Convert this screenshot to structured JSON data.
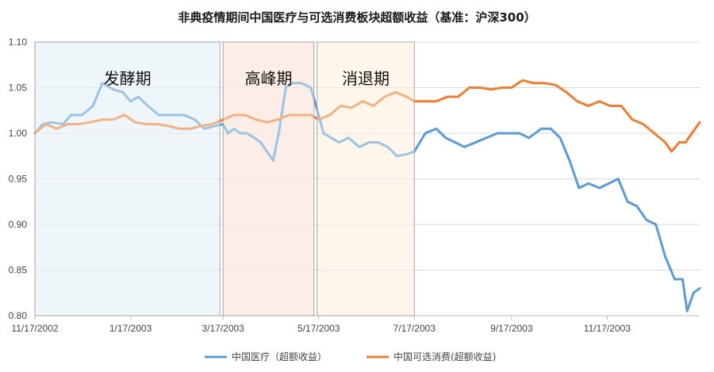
{
  "chart_data": {
    "type": "line",
    "title": "非典疫情期间中国医疗与可选消费板块超额收益（基准：沪深300）",
    "xlabel": "",
    "ylabel": "",
    "x_ticks": [
      "11/17/2002",
      "1/17/2003",
      "3/17/2003",
      "5/17/2003",
      "7/17/2003",
      "9/17/2003",
      "11/17/2003"
    ],
    "x_range": [
      "2002-11-17",
      "2004-01-15"
    ],
    "ylim": [
      0.8,
      1.1
    ],
    "y_ticks": [
      "0.80",
      "0.85",
      "0.90",
      "0.95",
      "1.00",
      "1.05",
      "1.10"
    ],
    "grid": "horizontal",
    "legend_position": "bottom",
    "phases": [
      {
        "label": "发酵期",
        "start": "2002-11-17",
        "end": "2003-03-15",
        "color": "#e3f1f5"
      },
      {
        "label": "高峰期",
        "start": "2003-03-17",
        "end": "2003-05-14",
        "color": "#fbe3d6"
      },
      {
        "label": "消退期",
        "start": "2003-05-16",
        "end": "2003-07-17",
        "color": "#fdf0de"
      }
    ],
    "series": [
      {
        "name": "中国医疗（超额收益）",
        "color": "#5b9bd5",
        "points": [
          [
            "2002-11-17",
            1.0
          ],
          [
            "2002-11-22",
            1.01
          ],
          [
            "2002-11-28",
            1.012
          ],
          [
            "2002-12-05",
            1.01
          ],
          [
            "2002-12-10",
            1.02
          ],
          [
            "2002-12-17",
            1.02
          ],
          [
            "2002-12-24",
            1.03
          ],
          [
            "2002-12-30",
            1.055
          ],
          [
            "2003-01-06",
            1.048
          ],
          [
            "2003-01-12",
            1.045
          ],
          [
            "2003-01-17",
            1.035
          ],
          [
            "2003-01-22",
            1.04
          ],
          [
            "2003-01-28",
            1.03
          ],
          [
            "2003-02-04",
            1.02
          ],
          [
            "2003-02-12",
            1.02
          ],
          [
            "2003-02-20",
            1.02
          ],
          [
            "2003-02-27",
            1.015
          ],
          [
            "2003-03-05",
            1.005
          ],
          [
            "2003-03-12",
            1.008
          ],
          [
            "2003-03-17",
            1.01
          ],
          [
            "2003-03-20",
            1.0
          ],
          [
            "2003-03-24",
            1.005
          ],
          [
            "2003-03-28",
            1.0
          ],
          [
            "2003-04-01",
            1.0
          ],
          [
            "2003-04-06",
            0.995
          ],
          [
            "2003-04-10",
            0.99
          ],
          [
            "2003-04-14",
            0.98
          ],
          [
            "2003-04-18",
            0.97
          ],
          [
            "2003-04-22",
            1.005
          ],
          [
            "2003-04-26",
            1.05
          ],
          [
            "2003-04-30",
            1.055
          ],
          [
            "2003-05-06",
            1.055
          ],
          [
            "2003-05-12",
            1.05
          ],
          [
            "2003-05-17",
            1.02
          ],
          [
            "2003-05-20",
            1.0
          ],
          [
            "2003-05-25",
            0.995
          ],
          [
            "2003-05-30",
            0.99
          ],
          [
            "2003-06-05",
            0.995
          ],
          [
            "2003-06-12",
            0.985
          ],
          [
            "2003-06-18",
            0.99
          ],
          [
            "2003-06-24",
            0.99
          ],
          [
            "2003-06-30",
            0.985
          ],
          [
            "2003-07-06",
            0.975
          ],
          [
            "2003-07-12",
            0.977
          ],
          [
            "2003-07-17",
            0.98
          ],
          [
            "2003-07-24",
            1.0
          ],
          [
            "2003-07-31",
            1.005
          ],
          [
            "2003-08-06",
            0.995
          ],
          [
            "2003-08-12",
            0.99
          ],
          [
            "2003-08-18",
            0.985
          ],
          [
            "2003-08-25",
            0.99
          ],
          [
            "2003-09-01",
            0.995
          ],
          [
            "2003-09-08",
            1.0
          ],
          [
            "2003-09-15",
            1.0
          ],
          [
            "2003-09-22",
            1.0
          ],
          [
            "2003-09-28",
            0.995
          ],
          [
            "2003-10-06",
            1.005
          ],
          [
            "2003-10-12",
            1.005
          ],
          [
            "2003-10-18",
            0.995
          ],
          [
            "2003-10-24",
            0.97
          ],
          [
            "2003-10-30",
            0.94
          ],
          [
            "2003-11-05",
            0.945
          ],
          [
            "2003-11-12",
            0.94
          ],
          [
            "2003-11-18",
            0.945
          ],
          [
            "2003-11-24",
            0.95
          ],
          [
            "2003-11-30",
            0.925
          ],
          [
            "2003-12-06",
            0.92
          ],
          [
            "2003-12-12",
            0.905
          ],
          [
            "2003-12-18",
            0.9
          ],
          [
            "2003-12-24",
            0.865
          ],
          [
            "2003-12-30",
            0.84
          ],
          [
            "2004-01-04",
            0.84
          ],
          [
            "2004-01-07",
            0.805
          ],
          [
            "2004-01-11",
            0.825
          ],
          [
            "2004-01-15",
            0.83
          ]
        ]
      },
      {
        "name": "中国可选消费(超额收益)",
        "color": "#ed7d31",
        "points": [
          [
            "2002-11-17",
            1.0
          ],
          [
            "2002-11-24",
            1.01
          ],
          [
            "2002-12-01",
            1.005
          ],
          [
            "2002-12-08",
            1.01
          ],
          [
            "2002-12-15",
            1.01
          ],
          [
            "2002-12-22",
            1.012
          ],
          [
            "2002-12-30",
            1.015
          ],
          [
            "2003-01-06",
            1.015
          ],
          [
            "2003-01-13",
            1.02
          ],
          [
            "2003-01-20",
            1.012
          ],
          [
            "2003-01-27",
            1.01
          ],
          [
            "2003-02-03",
            1.01
          ],
          [
            "2003-02-10",
            1.008
          ],
          [
            "2003-02-17",
            1.005
          ],
          [
            "2003-02-24",
            1.005
          ],
          [
            "2003-03-03",
            1.008
          ],
          [
            "2003-03-10",
            1.01
          ],
          [
            "2003-03-17",
            1.015
          ],
          [
            "2003-03-24",
            1.02
          ],
          [
            "2003-03-31",
            1.02
          ],
          [
            "2003-04-07",
            1.015
          ],
          [
            "2003-04-14",
            1.012
          ],
          [
            "2003-04-21",
            1.015
          ],
          [
            "2003-04-28",
            1.02
          ],
          [
            "2003-05-05",
            1.02
          ],
          [
            "2003-05-12",
            1.02
          ],
          [
            "2003-05-17",
            1.015
          ],
          [
            "2003-05-24",
            1.02
          ],
          [
            "2003-05-31",
            1.03
          ],
          [
            "2003-06-07",
            1.028
          ],
          [
            "2003-06-14",
            1.035
          ],
          [
            "2003-06-21",
            1.03
          ],
          [
            "2003-06-28",
            1.04
          ],
          [
            "2003-07-05",
            1.045
          ],
          [
            "2003-07-12",
            1.04
          ],
          [
            "2003-07-17",
            1.035
          ],
          [
            "2003-07-24",
            1.035
          ],
          [
            "2003-07-31",
            1.035
          ],
          [
            "2003-08-07",
            1.04
          ],
          [
            "2003-08-14",
            1.04
          ],
          [
            "2003-08-21",
            1.05
          ],
          [
            "2003-08-28",
            1.05
          ],
          [
            "2003-09-04",
            1.048
          ],
          [
            "2003-09-11",
            1.05
          ],
          [
            "2003-09-17",
            1.05
          ],
          [
            "2003-09-24",
            1.058
          ],
          [
            "2003-10-01",
            1.055
          ],
          [
            "2003-10-08",
            1.055
          ],
          [
            "2003-10-15",
            1.053
          ],
          [
            "2003-10-22",
            1.045
          ],
          [
            "2003-10-29",
            1.035
          ],
          [
            "2003-11-05",
            1.03
          ],
          [
            "2003-11-12",
            1.035
          ],
          [
            "2003-11-19",
            1.03
          ],
          [
            "2003-11-26",
            1.03
          ],
          [
            "2003-12-03",
            1.015
          ],
          [
            "2003-12-10",
            1.01
          ],
          [
            "2003-12-17",
            1.0
          ],
          [
            "2003-12-24",
            0.99
          ],
          [
            "2003-12-28",
            0.98
          ],
          [
            "2004-01-02",
            0.99
          ],
          [
            "2004-01-06",
            0.99
          ],
          [
            "2004-01-10",
            1.0
          ],
          [
            "2004-01-15",
            1.012
          ]
        ]
      }
    ]
  }
}
